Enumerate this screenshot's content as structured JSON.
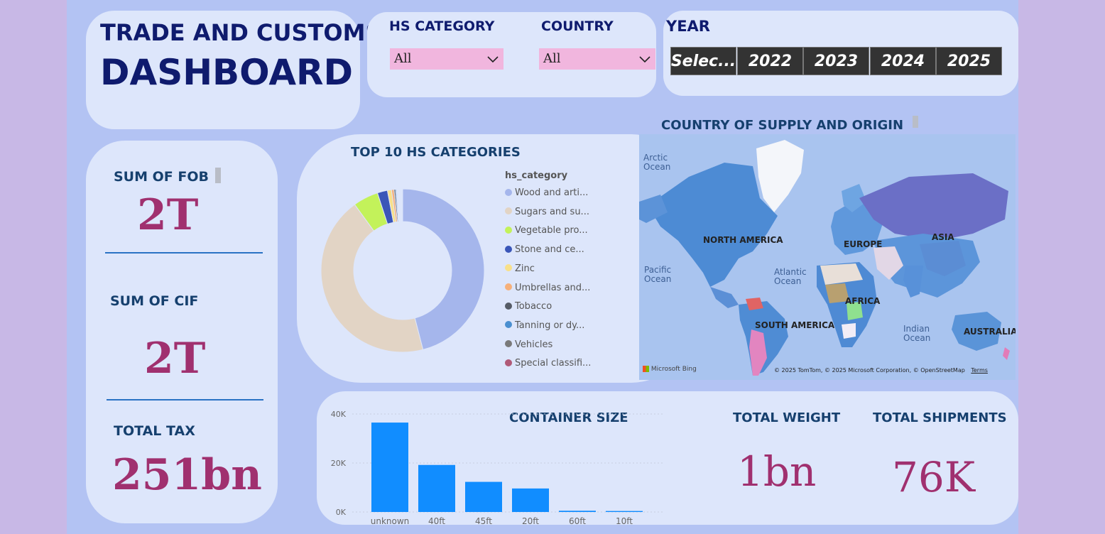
{
  "title": {
    "line1": "TRADE AND CUSTOMS",
    "line2": "DASHBOARD"
  },
  "filters": {
    "hs_category": {
      "label": "HS CATEGORY",
      "value": "All"
    },
    "country": {
      "label": "COUNTRY",
      "value": "All"
    }
  },
  "year": {
    "label": "YEAR",
    "options": [
      "Selec...",
      "2022",
      "2023",
      "2024",
      "2025"
    ]
  },
  "kpis": {
    "fob": {
      "label": "SUM OF FOB",
      "value": "2T"
    },
    "cif": {
      "label": "SUM OF CIF",
      "value": "2T"
    },
    "tax": {
      "label": "TOTAL TAX",
      "value": "251bn"
    },
    "weight": {
      "label": "TOTAL WEIGHT",
      "value": "1bn"
    },
    "shipments": {
      "label": "TOTAL SHIPMENTS",
      "value": "76K"
    }
  },
  "donut": {
    "title": "TOP 10 HS CATEGORIES",
    "legend_title": "hs_category",
    "items": [
      {
        "label": "Wood and arti...",
        "color": "#a5b6ec"
      },
      {
        "label": "Sugars and su...",
        "color": "#e2d4c5"
      },
      {
        "label": "Vegetable pro...",
        "color": "#c3f25a"
      },
      {
        "label": "Stone and ce...",
        "color": "#3a56b8"
      },
      {
        "label": "Zinc",
        "color": "#f8e08a"
      },
      {
        "label": "Umbrellas and...",
        "color": "#f6b07a"
      },
      {
        "label": "Tobacco",
        "color": "#555b66"
      },
      {
        "label": "Tanning or dy...",
        "color": "#4a8fd0"
      },
      {
        "label": "Vehicles",
        "color": "#7a7a7a"
      },
      {
        "label": "Special classifi...",
        "color": "#b05a78"
      }
    ]
  },
  "map": {
    "title": "COUNTRY OF SUPPLY AND ORIGIN",
    "regions": [
      "NORTH AMERICA",
      "EUROPE",
      "ASIA",
      "AFRICA",
      "SOUTH AMERICA",
      "AUSTRALIA"
    ],
    "oceans": [
      "Arctic Ocean",
      "Pacific Ocean",
      "Atlantic Ocean",
      "Indian Ocean"
    ],
    "provider": "Microsoft Bing",
    "attribution": "© 2025 TomTom, © 2025 Microsoft Corporation, © OpenStreetMap",
    "terms": "Terms"
  },
  "chart_data": {
    "type": "bar",
    "title": "CONTAINER SIZE",
    "categories": [
      "unknown",
      "40ft",
      "45ft",
      "20ft",
      "60ft",
      "10ft"
    ],
    "values": [
      36500,
      19200,
      12300,
      9600,
      500,
      400
    ],
    "ylim": [
      0,
      40000
    ],
    "yticks": [
      0,
      20000,
      40000
    ],
    "ytick_labels": [
      "0K",
      "20K",
      "40K"
    ],
    "xlabel": "",
    "ylabel": "",
    "color": "#118dff"
  }
}
